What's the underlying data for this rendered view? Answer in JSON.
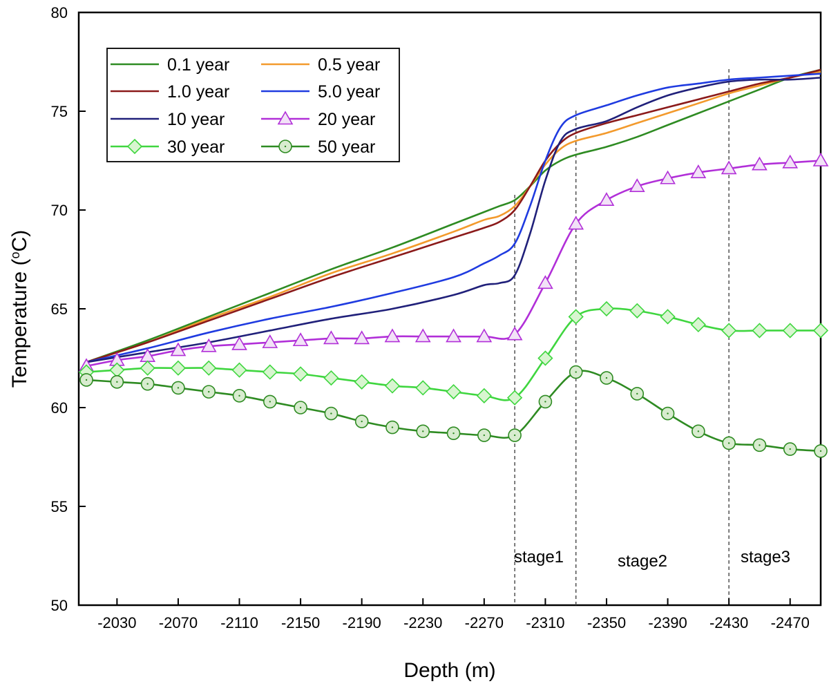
{
  "chart_data": {
    "type": "line",
    "title": "",
    "xlabel": "Depth (m)",
    "ylabel": "Temperature (°C)",
    "ylabel_parts": [
      "Temperature (",
      "o",
      "C)"
    ],
    "xlim": [
      -2005,
      -2490
    ],
    "ylim": [
      50,
      80
    ],
    "xticks": [
      -2030,
      -2070,
      -2110,
      -2150,
      -2190,
      -2230,
      -2270,
      -2310,
      -2350,
      -2390,
      -2430,
      -2470
    ],
    "yticks": [
      50,
      55,
      60,
      65,
      70,
      75,
      80
    ],
    "legend_position": "top-left",
    "stages": [
      {
        "label": "stage1",
        "x": -2290
      },
      {
        "label": "stage2",
        "x": -2330
      },
      {
        "label": "stage3",
        "x": -2430
      }
    ],
    "series": [
      {
        "name": "0.1 year",
        "color": "#2e8b22",
        "marker": "none",
        "x": [
          -2010,
          -2050,
          -2090,
          -2130,
          -2170,
          -2210,
          -2250,
          -2270,
          -2280,
          -2290,
          -2300,
          -2310,
          -2320,
          -2330,
          -2350,
          -2370,
          -2390,
          -2410,
          -2430,
          -2450,
          -2470,
          -2490
        ],
        "values": [
          62.3,
          63.4,
          64.6,
          65.8,
          67.0,
          68.1,
          69.3,
          69.9,
          70.2,
          70.5,
          71.2,
          72.0,
          72.5,
          72.8,
          73.2,
          73.7,
          74.3,
          74.9,
          75.5,
          76.1,
          76.7,
          77.1
        ]
      },
      {
        "name": "0.5 year",
        "color": "#f39a2c",
        "marker": "none",
        "x": [
          -2010,
          -2050,
          -2090,
          -2130,
          -2170,
          -2210,
          -2250,
          -2270,
          -2280,
          -2290,
          -2300,
          -2310,
          -2320,
          -2330,
          -2350,
          -2370,
          -2390,
          -2410,
          -2430,
          -2450,
          -2470,
          -2490
        ],
        "values": [
          62.3,
          63.3,
          64.5,
          65.6,
          66.8,
          67.8,
          68.9,
          69.5,
          69.7,
          70.2,
          71.2,
          72.3,
          73.1,
          73.5,
          73.9,
          74.4,
          74.9,
          75.4,
          75.9,
          76.3,
          76.7,
          77.0
        ]
      },
      {
        "name": "1.0 year",
        "color": "#8b1a1a",
        "marker": "none",
        "x": [
          -2010,
          -2050,
          -2090,
          -2130,
          -2170,
          -2210,
          -2250,
          -2270,
          -2280,
          -2290,
          -2300,
          -2310,
          -2320,
          -2330,
          -2350,
          -2370,
          -2390,
          -2410,
          -2430,
          -2450,
          -2470,
          -2490
        ],
        "values": [
          62.3,
          63.3,
          64.4,
          65.5,
          66.6,
          67.6,
          68.6,
          69.1,
          69.4,
          70.0,
          71.2,
          72.5,
          73.4,
          73.9,
          74.4,
          74.8,
          75.2,
          75.6,
          76.0,
          76.4,
          76.7,
          77.1
        ]
      },
      {
        "name": "5.0 year",
        "color": "#1f3be0",
        "marker": "none",
        "x": [
          -2010,
          -2050,
          -2090,
          -2130,
          -2170,
          -2210,
          -2250,
          -2270,
          -2280,
          -2290,
          -2300,
          -2310,
          -2320,
          -2330,
          -2350,
          -2370,
          -2390,
          -2410,
          -2430,
          -2450,
          -2470,
          -2490
        ],
        "values": [
          62.3,
          63.0,
          63.8,
          64.5,
          65.1,
          65.8,
          66.6,
          67.3,
          67.7,
          68.3,
          70.2,
          72.5,
          74.2,
          74.8,
          75.3,
          75.8,
          76.2,
          76.4,
          76.6,
          76.7,
          76.8,
          76.9
        ]
      },
      {
        "name": "10  year",
        "color": "#20207a",
        "marker": "none",
        "x": [
          -2010,
          -2050,
          -2090,
          -2130,
          -2170,
          -2210,
          -2250,
          -2270,
          -2280,
          -2290,
          -2300,
          -2310,
          -2320,
          -2330,
          -2350,
          -2370,
          -2390,
          -2410,
          -2430,
          -2450,
          -2470,
          -2490
        ],
        "values": [
          62.3,
          62.8,
          63.3,
          63.9,
          64.5,
          65.0,
          65.7,
          66.2,
          66.3,
          66.7,
          68.8,
          71.5,
          73.5,
          74.1,
          74.5,
          75.2,
          75.8,
          76.2,
          76.5,
          76.6,
          76.6,
          76.7
        ]
      },
      {
        "name": "20  year",
        "color": "#b12fd8",
        "marker": "triangle",
        "marker_fill": "#f2e2f7",
        "x": [
          -2010,
          -2030,
          -2050,
          -2070,
          -2090,
          -2110,
          -2130,
          -2150,
          -2170,
          -2190,
          -2210,
          -2230,
          -2250,
          -2270,
          -2290,
          -2310,
          -2330,
          -2350,
          -2370,
          -2390,
          -2410,
          -2430,
          -2450,
          -2470,
          -2490
        ],
        "values": [
          62.1,
          62.4,
          62.6,
          62.9,
          63.1,
          63.2,
          63.3,
          63.4,
          63.5,
          63.5,
          63.6,
          63.6,
          63.6,
          63.6,
          63.7,
          66.3,
          69.3,
          70.5,
          71.2,
          71.6,
          71.9,
          72.1,
          72.3,
          72.4,
          72.5
        ]
      },
      {
        "name": "30  year",
        "color": "#3fd63f",
        "marker": "diamond",
        "marker_fill": "#d8f5d0",
        "x": [
          -2010,
          -2030,
          -2050,
          -2070,
          -2090,
          -2110,
          -2130,
          -2150,
          -2170,
          -2190,
          -2210,
          -2230,
          -2250,
          -2270,
          -2290,
          -2310,
          -2330,
          -2350,
          -2370,
          -2390,
          -2410,
          -2430,
          -2450,
          -2470,
          -2490
        ],
        "values": [
          61.8,
          61.9,
          62.0,
          62.0,
          62.0,
          61.9,
          61.8,
          61.7,
          61.5,
          61.3,
          61.1,
          61.0,
          60.8,
          60.6,
          60.5,
          62.5,
          64.6,
          65.0,
          64.9,
          64.6,
          64.2,
          63.9,
          63.9,
          63.9,
          63.9
        ]
      },
      {
        "name": "50  year",
        "color": "#2e8b22",
        "marker": "circle",
        "marker_fill": "#d8eccf",
        "x": [
          -2010,
          -2030,
          -2050,
          -2070,
          -2090,
          -2110,
          -2130,
          -2150,
          -2170,
          -2190,
          -2210,
          -2230,
          -2250,
          -2270,
          -2290,
          -2310,
          -2330,
          -2350,
          -2370,
          -2390,
          -2410,
          -2430,
          -2450,
          -2470,
          -2490
        ],
        "values": [
          61.4,
          61.3,
          61.2,
          61.0,
          60.8,
          60.6,
          60.3,
          60.0,
          59.7,
          59.3,
          59.0,
          58.8,
          58.7,
          58.6,
          58.6,
          60.3,
          61.8,
          61.5,
          60.7,
          59.7,
          58.8,
          58.2,
          58.1,
          57.9,
          57.8
        ]
      }
    ]
  }
}
